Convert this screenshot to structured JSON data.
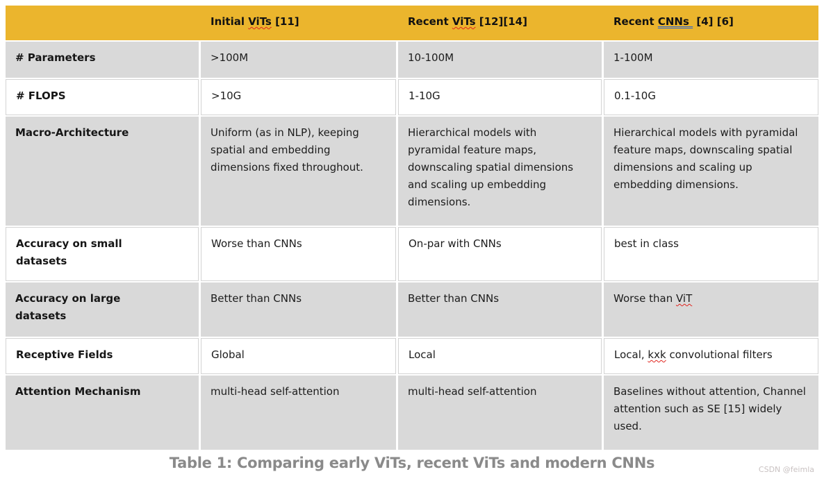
{
  "page": {
    "caption": "Table 1: Comparing early ViTs, recent ViTs and modern CNNs",
    "watermark": "CSDN @feimla"
  },
  "colors": {
    "header_bg": "#EBB52D",
    "row_gray_bg": "#D9D9D9",
    "white_cell_border": "#D3D3D3",
    "spell_underline": "#E0241E",
    "grammar_underline": "#3366CC",
    "caption_text": "#8A8A8A"
  },
  "table": {
    "header_cells": [
      {
        "pre": ""
      },
      {
        "pre": "Initial ",
        "mark": "ViTs",
        "mark_type": "spell",
        "post": " [11]"
      },
      {
        "pre": "Recent ",
        "mark": "ViTs",
        "mark_type": "spell",
        "post": " [12][14]"
      },
      {
        "pre": "Recent ",
        "mark": "CNNs ",
        "mark_type": "grammar",
        "post": " [4] [6]"
      }
    ],
    "rows": [
      {
        "header": "# Parameters",
        "cells": [
          {
            "pre": ">100M"
          },
          {
            "pre": "10-100M"
          },
          {
            "pre": "1-100M"
          }
        ]
      },
      {
        "header": "# FLOPS",
        "cells": [
          {
            "pre": ">10G"
          },
          {
            "pre": "1-10G"
          },
          {
            "pre": "0.1-10G"
          }
        ]
      },
      {
        "header": "Macro-Architecture",
        "cells": [
          {
            "pre": "Uniform (as in NLP), keeping spatial and embedding dimensions fixed throughout."
          },
          {
            "pre": "Hierarchical models with pyramidal feature maps, downscaling spatial dimensions and scaling up embedding dimensions."
          },
          {
            "pre": "Hierarchical models with pyramidal feature maps, downscaling spatial dimensions and scaling up embedding dimensions."
          }
        ]
      },
      {
        "header": "Accuracy on small datasets",
        "cells": [
          {
            "pre": "Worse than CNNs"
          },
          {
            "pre": "On-par with CNNs"
          },
          {
            "pre": "best in class"
          }
        ]
      },
      {
        "header": "Accuracy on large datasets",
        "cells": [
          {
            "pre": "Better than CNNs"
          },
          {
            "pre": "Better than CNNs"
          },
          {
            "pre": "Worse than ",
            "mark": "ViT",
            "mark_type": "spell",
            "post": ""
          }
        ]
      },
      {
        "header": "Receptive Fields",
        "cells": [
          {
            "pre": "Global"
          },
          {
            "pre": "Local"
          },
          {
            "pre": "Local, ",
            "mark": "kxk",
            "mark_type": "spell",
            "post": " convolutional filters"
          }
        ]
      },
      {
        "header": "Attention Mechanism",
        "cells": [
          {
            "pre": "multi-head self-attention"
          },
          {
            "pre": "multi-head self-attention"
          },
          {
            "pre": "Baselines without attention, Channel attention such as SE [15] widely used."
          }
        ]
      }
    ]
  }
}
